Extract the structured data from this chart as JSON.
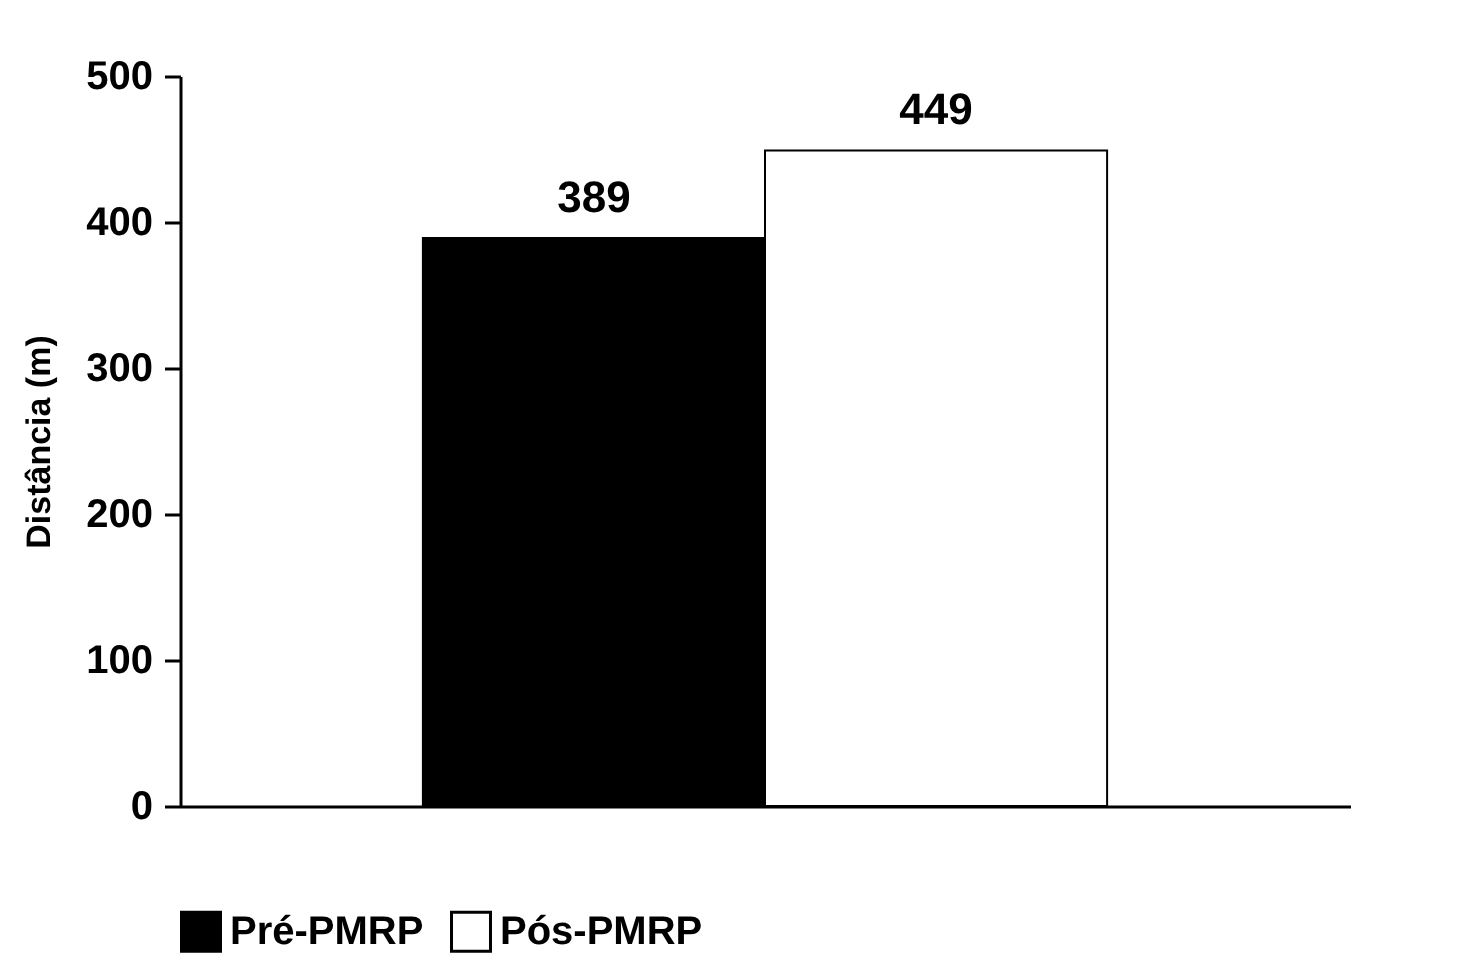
{
  "chart_data": {
    "type": "bar",
    "ylabel": "Distância (m)",
    "categories": [
      null
    ],
    "series": [
      {
        "name": "Pré-PMRP",
        "color": "#000000",
        "values": [
          389
        ]
      },
      {
        "name": "Pós-PMRP",
        "color": "#ffffff",
        "values": [
          449
        ]
      }
    ],
    "ylim": [
      0,
      500
    ],
    "yticks": [
      0,
      100,
      200,
      300,
      400,
      500
    ],
    "grid": false,
    "legend": "bottom",
    "data_labels": true
  }
}
